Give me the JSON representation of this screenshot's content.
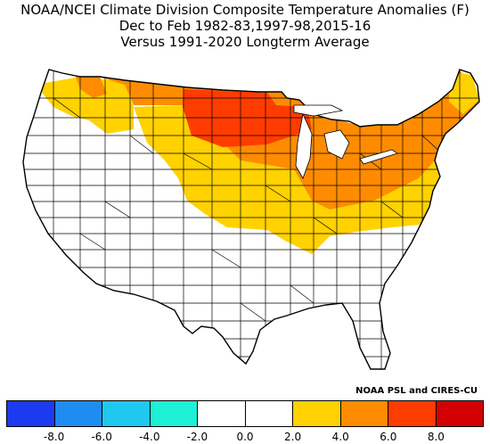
{
  "header": {
    "line1": "NOAA/NCEI Climate Division Composite Temperature Anomalies (F)",
    "line2": "Dec to Feb  1982-83,1997-98,2015-16",
    "line3": "Versus 1991-2020 Longterm Average"
  },
  "credit": "NOAA PSL and CIRES-CU",
  "colorbar": {
    "colors": [
      "#1c3bf0",
      "#1e8cf0",
      "#1ec8f0",
      "#1ef0d8",
      "#ffffff",
      "#ffffff",
      "#ffd200",
      "#ff8c00",
      "#ff3c00",
      "#d20000"
    ],
    "ticks": [
      "-8.0",
      "-6.0",
      "-4.0",
      "-2.0",
      "0.0",
      "2.0",
      "4.0",
      "6.0",
      "8.0"
    ]
  },
  "map": {
    "region": "Contiguous United States climate divisions",
    "fill_levels": {
      "yellow": "2.0 to 4.0",
      "orange": "4.0 to 6.0",
      "red_orange": "6.0 to 8.0",
      "white": "-2.0 to 2.0"
    }
  }
}
